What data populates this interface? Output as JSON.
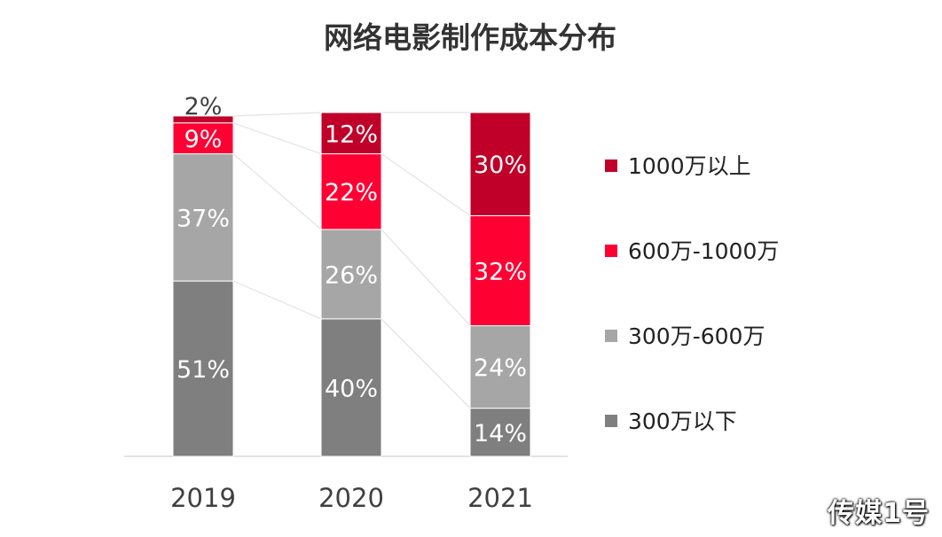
{
  "chart_data": {
    "type": "bar",
    "stacked": true,
    "percent": true,
    "title": "网络电影制作成本分布",
    "categories": [
      "2019",
      "2020",
      "2021"
    ],
    "series": [
      {
        "name": "300万以下",
        "values": [
          51,
          40,
          14
        ],
        "labels": [
          "51%",
          "40%",
          "14%"
        ],
        "color": "#7f7f7f"
      },
      {
        "name": "300万-600万",
        "values": [
          37,
          26,
          24
        ],
        "labels": [
          "37%",
          "26%",
          "24%"
        ],
        "color": "#a6a6a6"
      },
      {
        "name": "600万-1000万",
        "values": [
          9,
          22,
          32
        ],
        "labels": [
          "9%",
          "22%",
          "32%"
        ],
        "color": "#ff0033"
      },
      {
        "name": "1000万以上",
        "values": [
          2,
          12,
          30
        ],
        "labels": [
          "2%",
          "12%",
          "30%"
        ],
        "color": "#c00028"
      }
    ],
    "legend_order": [
      3,
      2,
      1,
      0
    ],
    "legend_position": "right",
    "ylim": [
      0,
      100
    ],
    "grid": false
  },
  "watermark": "传媒1号"
}
